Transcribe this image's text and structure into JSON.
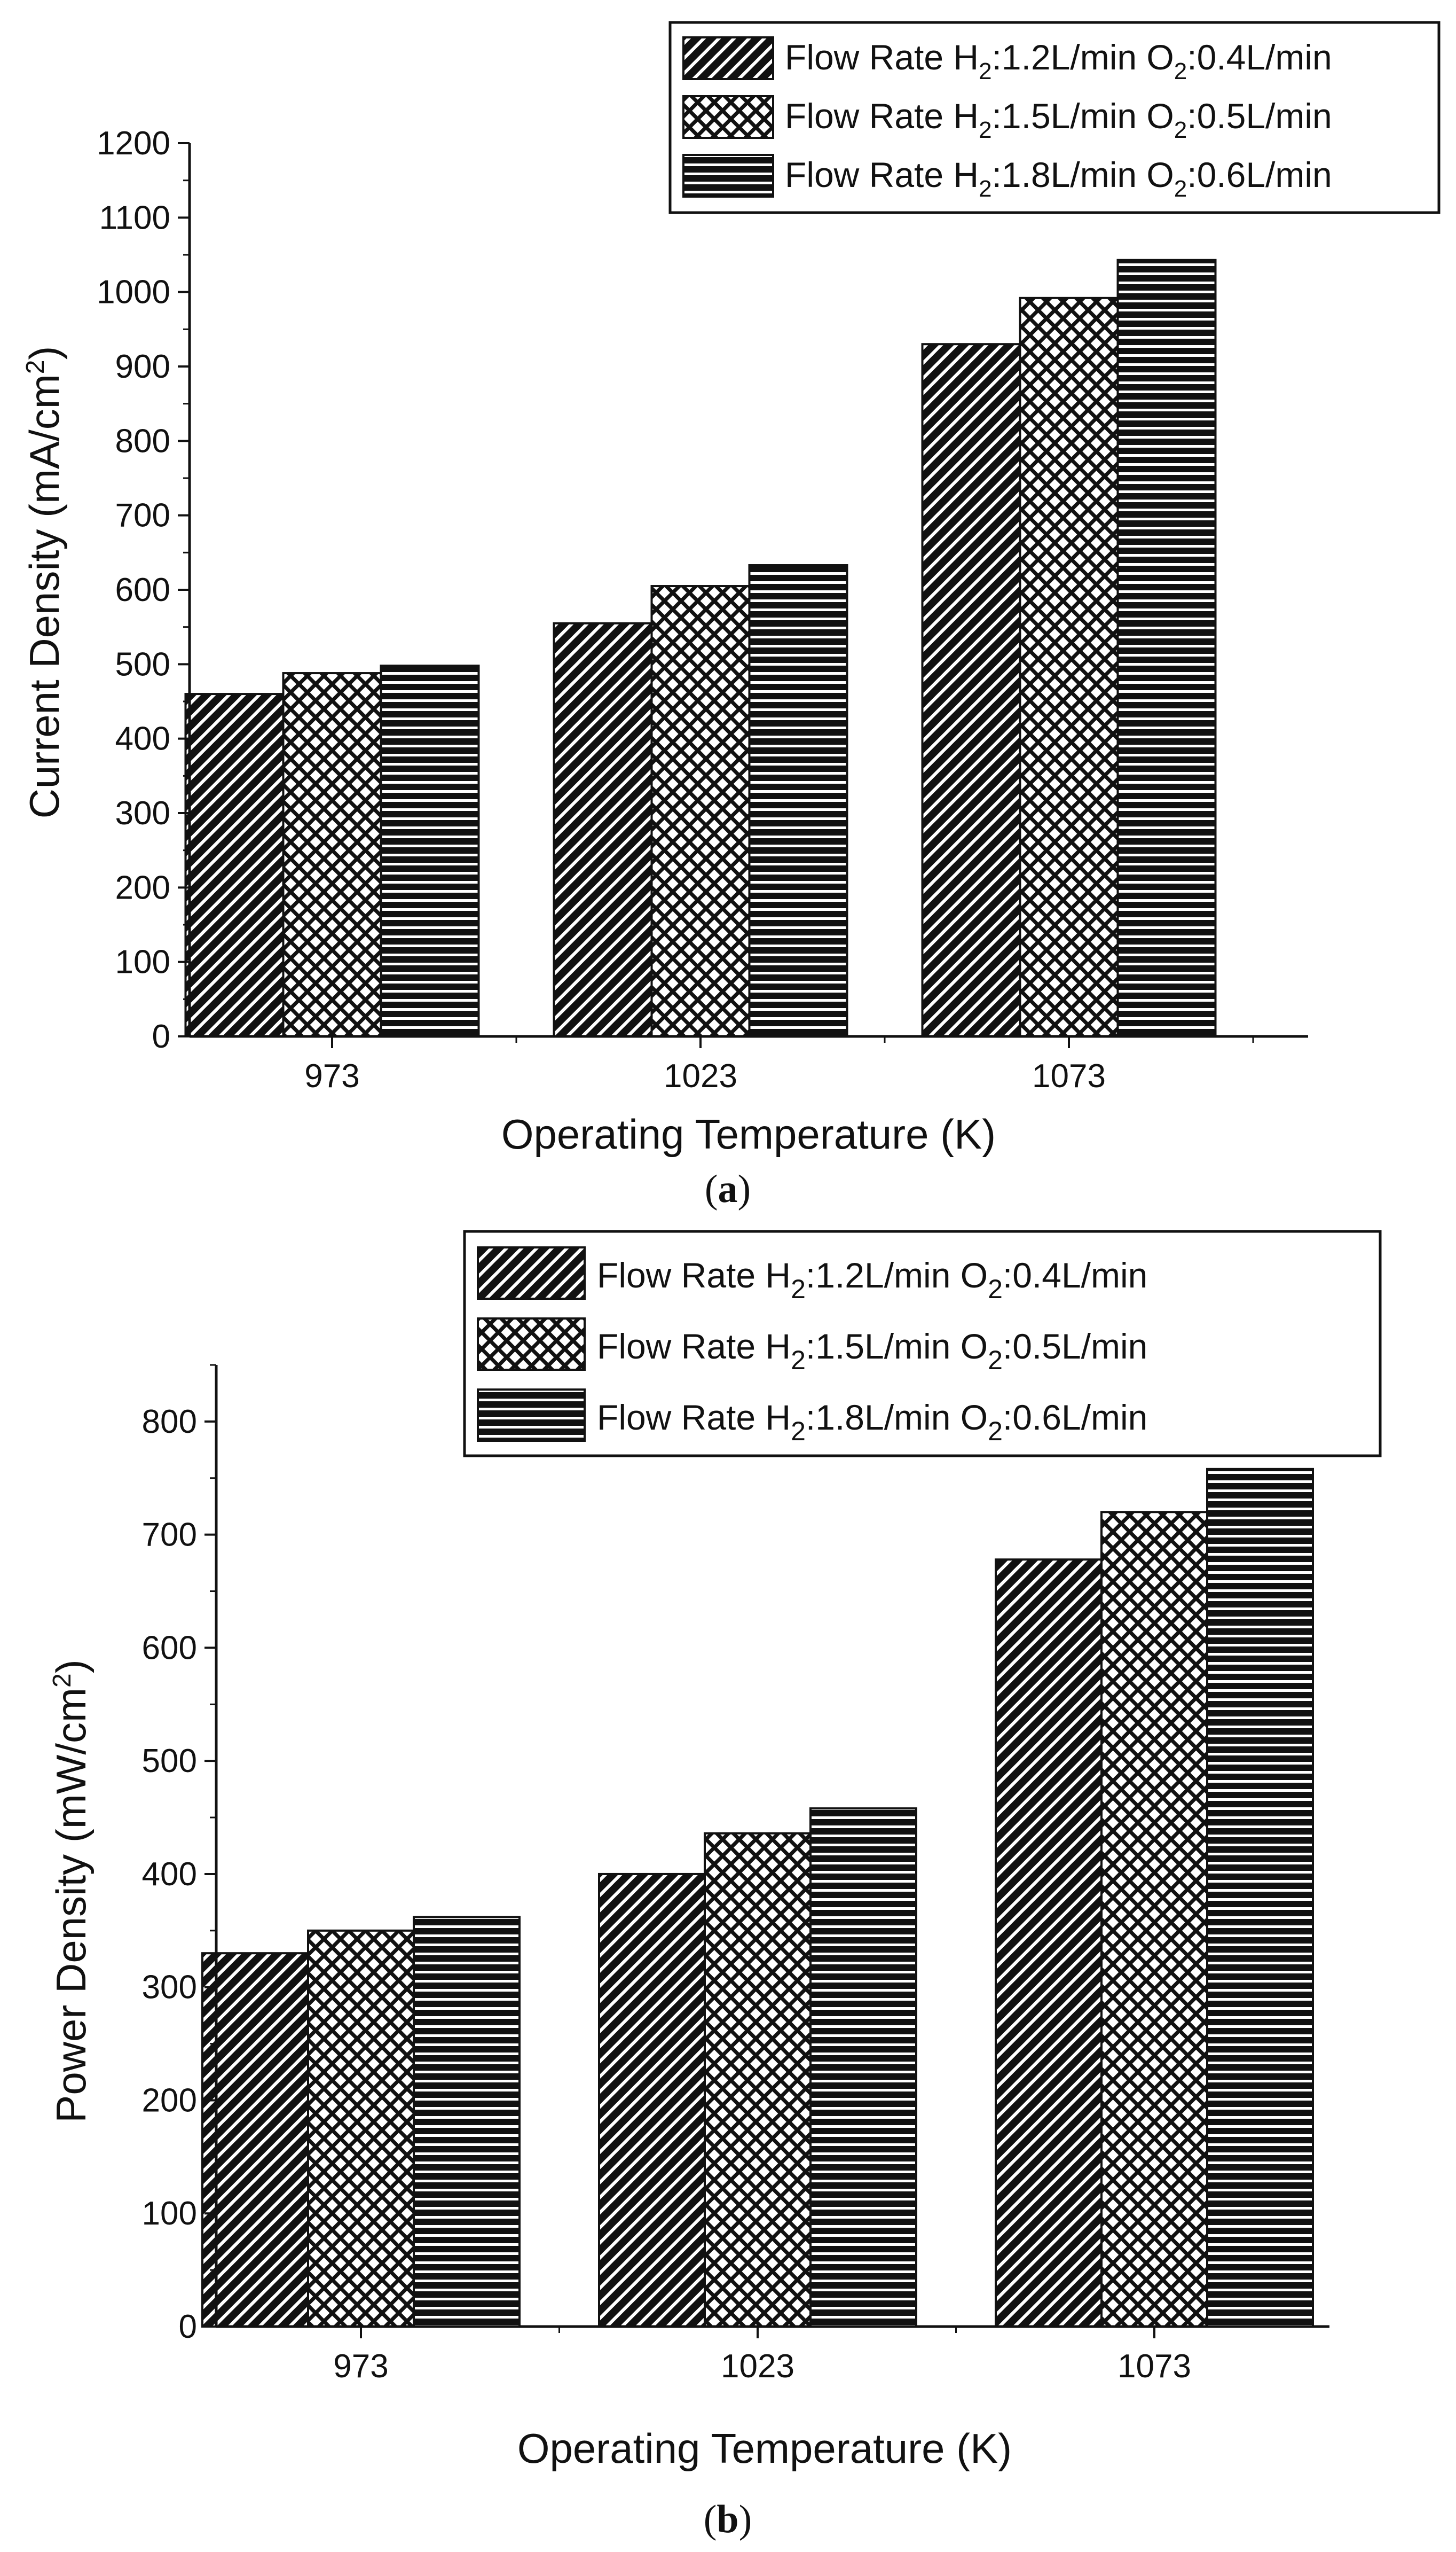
{
  "chart_data": [
    {
      "type": "bar",
      "panel_label": "a",
      "categories": [
        "973",
        "1023",
        "1073"
      ],
      "series": [
        {
          "name": "Flow Rate H2:1.2L/min O2:0.4L/min",
          "values": [
            460,
            555,
            930
          ],
          "pattern": "diagonal"
        },
        {
          "name": "Flow Rate H2:1.5L/min O2:0.5L/min",
          "values": [
            488,
            605,
            992
          ],
          "pattern": "crosshatch"
        },
        {
          "name": "Flow Rate H2:1.8L/min O2:0.6L/min",
          "values": [
            498,
            633,
            1043
          ],
          "pattern": "horizontal"
        }
      ],
      "xlabel": "Operating Temperature (K)",
      "ylabel_main": "Current Density (mA/cm",
      "ylabel_sup": "2",
      "ylabel_end": ")",
      "ylim": [
        0,
        1200
      ],
      "yticks": [
        0,
        100,
        200,
        300,
        400,
        500,
        600,
        700,
        800,
        900,
        1000,
        1100,
        1200
      ],
      "legend_position": "top-right"
    },
    {
      "type": "bar",
      "panel_label": "b",
      "categories": [
        "973",
        "1023",
        "1073"
      ],
      "series": [
        {
          "name": "Flow Rate H2:1.2L/min O2:0.4L/min",
          "values": [
            330,
            400,
            678
          ],
          "pattern": "diagonal"
        },
        {
          "name": "Flow Rate H2:1.5L/min O2:0.5L/min",
          "values": [
            350,
            436,
            720
          ],
          "pattern": "crosshatch"
        },
        {
          "name": "Flow Rate H2:1.8L/min O2:0.6L/min",
          "values": [
            362,
            458,
            758
          ],
          "pattern": "horizontal"
        }
      ],
      "xlabel": "Operating Temperature (K)",
      "ylabel_main": "Power Density (mW/cm",
      "ylabel_sup": "2",
      "ylabel_end": ")",
      "ylim": [
        0,
        850
      ],
      "yticks": [
        0,
        100,
        200,
        300,
        400,
        500,
        600,
        700,
        800
      ],
      "legend_position": "top-right"
    }
  ],
  "legend_entries": [
    {
      "p1": "Flow Rate H",
      "s1": "2",
      "p2": ":1.2L/min O",
      "s2": "2",
      "p3": ":0.4L/min"
    },
    {
      "p1": "Flow Rate H",
      "s1": "2",
      "p2": ":1.5L/min O",
      "s2": "2",
      "p3": ":0.5L/min"
    },
    {
      "p1": "Flow Rate H",
      "s1": "2",
      "p2": ":1.8L/min O",
      "s2": "2",
      "p3": ":0.6L/min"
    }
  ],
  "colors": {
    "bar_fill": "#111111",
    "bar_lines": "#ffffff",
    "axis": "#111111",
    "background": "#ffffff"
  }
}
